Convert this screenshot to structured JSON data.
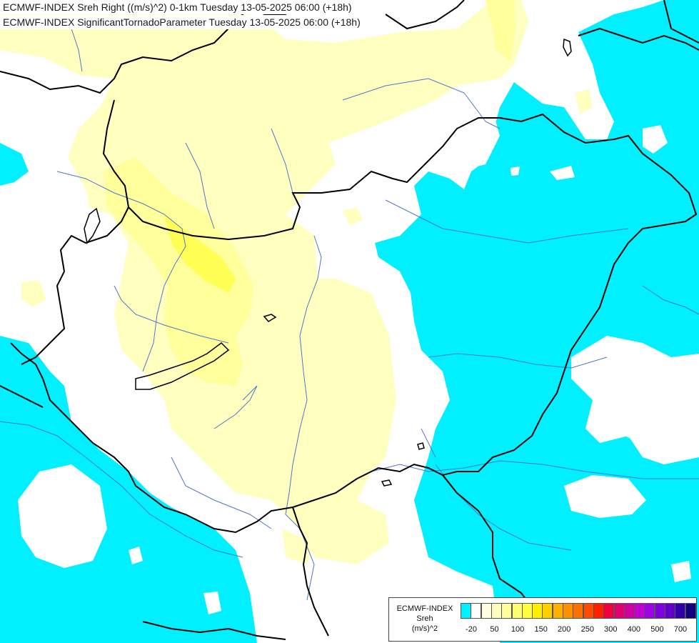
{
  "title": {
    "line1": "ECMWF-INDEX Sreh Right ((m/s)^2) 0-1km Tuesday 13-05-2025 06:00 (+18h)",
    "line2": "ECMWF-INDEX SignificantTornadoParameter Tuesday 13-05-2025 06:00 (+18h)"
  },
  "legend": {
    "source": "ECMWF-INDEX",
    "variable": "Sreh",
    "unit": "(m/s)^2",
    "colors": [
      "#00f0ff",
      "#ffffff",
      "#ffffe0",
      "#ffffc0",
      "#ffff9c",
      "#ffff70",
      "#ffff40",
      "#ffee00",
      "#ffd000",
      "#ffb000",
      "#ff9000",
      "#ff7000",
      "#ff4a00",
      "#ff2000",
      "#f0003c",
      "#e00070",
      "#d000a0",
      "#c000d0",
      "#a000e8",
      "#8000e0",
      "#6000c8",
      "#3000a8",
      "#100080"
    ],
    "ticks": [
      "-20",
      "50",
      "100",
      "150",
      "200",
      "250",
      "300",
      "400",
      "500",
      "700"
    ]
  },
  "colors": {
    "negative_helicity": "#00f0ff",
    "low_positive": "#ffffc0",
    "moderate_positive": "#ffff70",
    "background": "#ffffff",
    "borders": "#000000",
    "rivers": "#4a78c8"
  }
}
